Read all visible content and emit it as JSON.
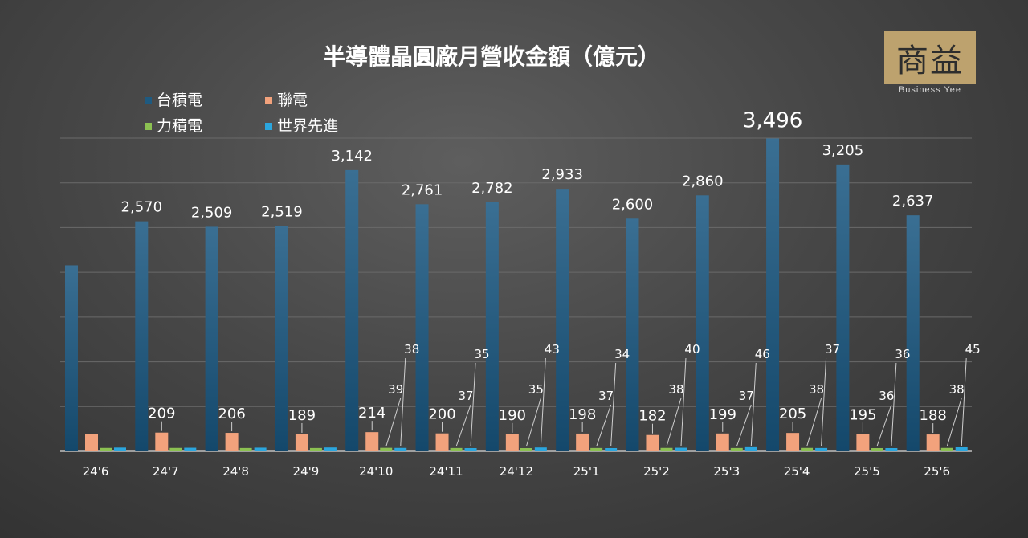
{
  "logo": {
    "mark": "商益",
    "subtitle": "Business Yee"
  },
  "chart_data": {
    "type": "bar",
    "title": "半導體晶圓廠月營收金額（億元）",
    "categories": [
      "24'6",
      "24'7",
      "24'8",
      "24'9",
      "24'10",
      "24'11",
      "24'12",
      "25'1",
      "25'2",
      "25'3",
      "25'4",
      "25'5",
      "25'6"
    ],
    "series": [
      {
        "name": "台積電",
        "color": "#1e5a80",
        "values": [
          2078,
          2570,
          2509,
          2519,
          3142,
          2761,
          2782,
          2933,
          2600,
          2860,
          3496,
          3205,
          2637
        ],
        "labels": [
          "",
          "2,570",
          "2,509",
          "2,519",
          "3,142",
          "2,761",
          "2,782",
          "2,933",
          "2,600",
          "2,860",
          "3,496",
          "3,205",
          "2,637"
        ]
      },
      {
        "name": "聯電",
        "color": "#f2a27c",
        "values": [
          196,
          209,
          206,
          189,
          214,
          200,
          190,
          198,
          182,
          199,
          205,
          195,
          188
        ],
        "labels": [
          "",
          "209",
          "206",
          "189",
          "214",
          "200",
          "190",
          "198",
          "182",
          "199",
          "205",
          "195",
          "188"
        ]
      },
      {
        "name": "力積電",
        "color": "#8cc152",
        "values": [
          38,
          38,
          37,
          37,
          39,
          37,
          35,
          37,
          38,
          37,
          38,
          36,
          38
        ],
        "labels": [
          "",
          "",
          "",
          "",
          "39",
          "37",
          "35",
          "37",
          "38",
          "37",
          "38",
          "36",
          "38"
        ]
      },
      {
        "name": "世界先進",
        "color": "#2ba6de",
        "values": [
          42,
          40,
          41,
          43,
          38,
          35,
          43,
          34,
          40,
          46,
          37,
          36,
          45
        ],
        "labels": [
          "",
          "",
          "",
          "",
          "38",
          "35",
          "43",
          "34",
          "40",
          "46",
          "37",
          "36",
          "45"
        ]
      }
    ],
    "ylim": [
      0,
      3500
    ],
    "grid": true,
    "legend_position": "top-left"
  }
}
